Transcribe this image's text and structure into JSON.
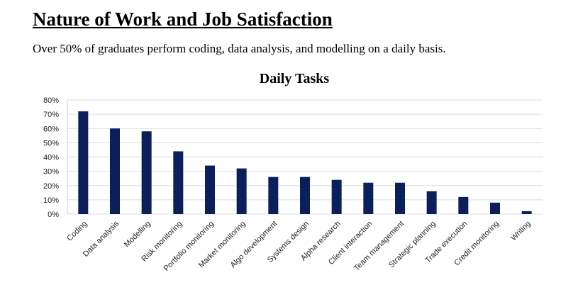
{
  "slide": {
    "title": "Nature of Work and Job Satisfaction",
    "subtitle": "Over 50% of graduates perform coding, data analysis, and modelling on a daily basis."
  },
  "chart_data": {
    "type": "bar",
    "title": "Daily Tasks",
    "xlabel": "",
    "ylabel": "",
    "categories": [
      "Coding",
      "Data analysis",
      "Modelling",
      "Risk monitoring",
      "Portfolio monitoring",
      "Market monitoring",
      "Algo development",
      "Systems design",
      "Alpha research",
      "Client interaction",
      "Team management",
      "Strategic planning",
      "Trade execution",
      "Credit monitoring",
      "Writing"
    ],
    "values": [
      72,
      60,
      58,
      44,
      34,
      32,
      26,
      26,
      24,
      22,
      22,
      16,
      12,
      8,
      2
    ],
    "ylim": [
      0,
      80
    ],
    "yticks": [
      "0%",
      "10%",
      "20%",
      "30%",
      "40%",
      "50%",
      "60%",
      "70%",
      "80%"
    ],
    "grid": true,
    "legend": "none",
    "bar_color": "#0b1f5c",
    "grid_color": "#d9dde3"
  }
}
